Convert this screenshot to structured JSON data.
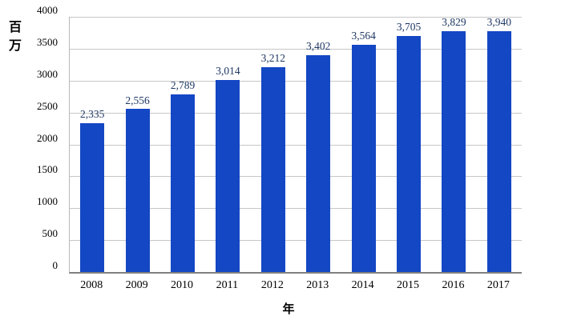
{
  "chart_data": {
    "type": "bar",
    "title": "",
    "categories": [
      "2008",
      "2009",
      "2010",
      "2011",
      "2012",
      "2013",
      "2014",
      "2015",
      "2016",
      "2017"
    ],
    "values": [
      2335,
      2556,
      2789,
      3014,
      3212,
      3402,
      3564,
      3705,
      3829,
      3940
    ],
    "value_labels": [
      "2,335",
      "2,556",
      "2,789",
      "3,014",
      "3,212",
      "3,402",
      "3,564",
      "3,705",
      "3,829",
      "3,940"
    ],
    "xlabel": "年",
    "ylabel": "百万",
    "ylim": [
      0,
      4000
    ],
    "ytick_interval": 500,
    "yticks": [
      0,
      500,
      1000,
      1500,
      2000,
      2500,
      3000,
      3500,
      4000
    ],
    "grid": "horizontal",
    "legend": "none",
    "colors": {
      "bar": "#1447c4",
      "value_label": "#1f3864",
      "gridline": "#c6c6c6",
      "axis_line": "#808080",
      "tick_label": "#000000"
    }
  }
}
